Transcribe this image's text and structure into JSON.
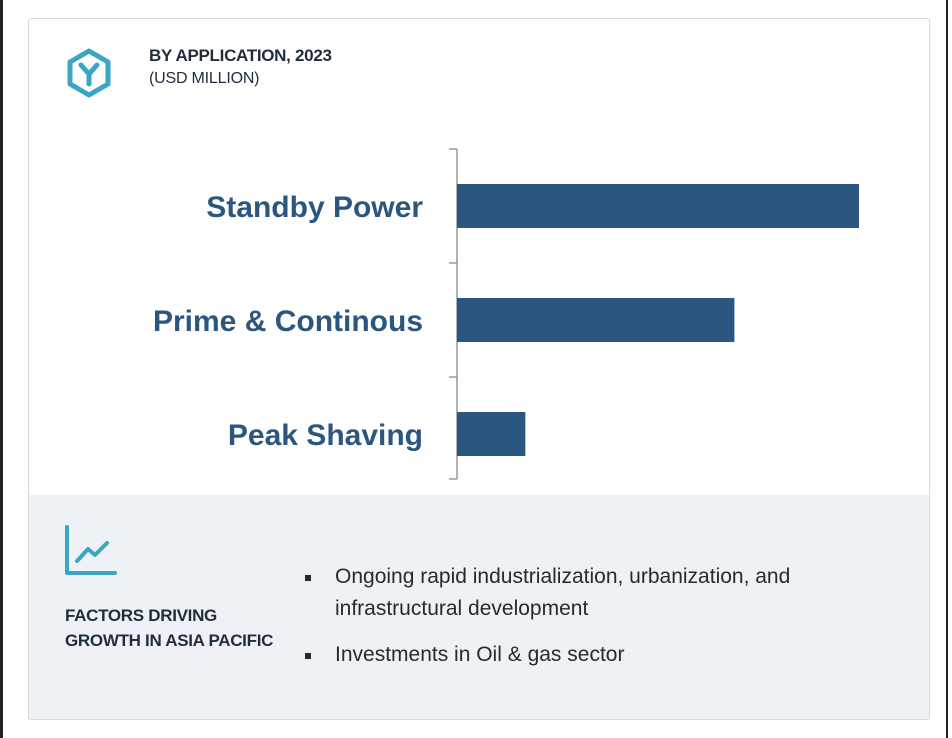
{
  "header": {
    "title": "BY APPLICATION, 2023",
    "subtitle": "(USD MILLION)",
    "icon": "hexagon-y-icon"
  },
  "colors": {
    "bar": "#2b5680",
    "label": "#2b5680",
    "accent": "#3aa6c4",
    "footer_bg": "#eef1f5"
  },
  "chart_data": {
    "type": "bar",
    "orientation": "horizontal",
    "categories": [
      "Standby Power",
      "Prime & Continous",
      "Peak Shaving"
    ],
    "values": [
      100,
      69,
      17
    ],
    "xlim": [
      0,
      100
    ],
    "grid": false,
    "legend": "none"
  },
  "footer": {
    "icon": "trend-line-icon",
    "factors_title": "FACTORS DRIVING GROWTH IN ASIA PACIFIC",
    "factors": [
      "Ongoing rapid industrialization, urbanization, and infrastructural development",
      "Investments in Oil & gas sector"
    ]
  }
}
